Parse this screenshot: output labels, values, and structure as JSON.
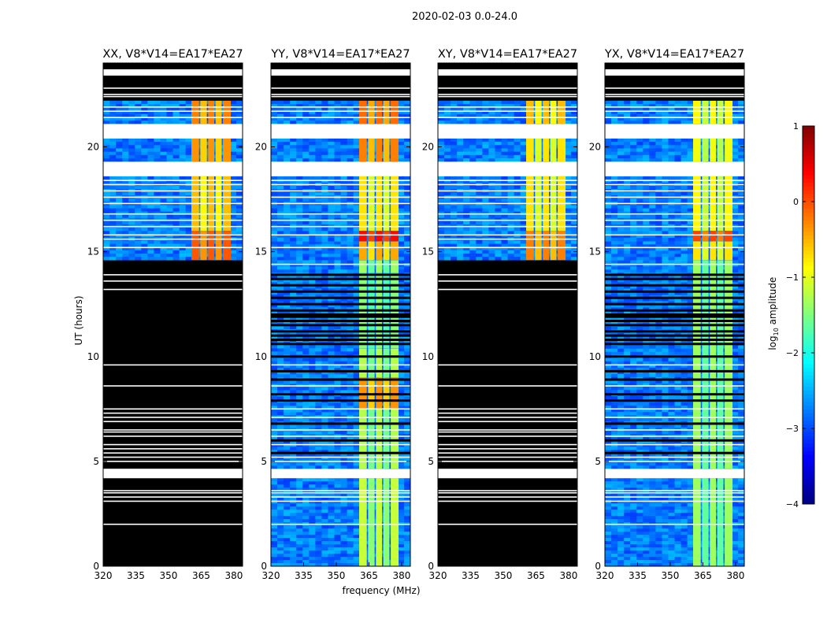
{
  "figure": {
    "title": "2020-02-03 0.0-24.0",
    "xlabel": "frequency (MHz)",
    "ylabel": "UT (hours)"
  },
  "colorbar": {
    "label_prefix": "log",
    "label_sub": "10",
    "label_suffix": " amplitude",
    "range": [
      -4,
      1
    ],
    "ticks": [
      "-4",
      "-3",
      "-2",
      "-1",
      "0",
      "1"
    ],
    "colormap": "jet"
  },
  "chart_data": [
    {
      "type": "heatmap",
      "title": "XX, V8*V14=EA17*EA27",
      "xlim": [
        320,
        384
      ],
      "ylim": [
        0,
        24
      ],
      "xticks": [
        320,
        335,
        350,
        365,
        380
      ],
      "yticks": [
        0,
        5,
        10,
        15,
        20
      ],
      "background_level": -2.8,
      "bands_mhz": [
        [
          360.5,
          364
        ],
        [
          364.6,
          367.6
        ],
        [
          368.2,
          371
        ],
        [
          371.6,
          374.4
        ],
        [
          375,
          378.6
        ]
      ],
      "segments": [
        {
          "t0": 0,
          "t1": 4.2,
          "state": "nodata"
        },
        {
          "t0": 4.2,
          "t1": 4.65,
          "state": "flagged"
        },
        {
          "t0": 4.65,
          "t1": 14.6,
          "state": "nodata"
        },
        {
          "t0": 14.6,
          "t1": 16.0,
          "state": "data",
          "band": -0.1
        },
        {
          "t0": 16.0,
          "t1": 18.6,
          "state": "data",
          "band": -0.6
        },
        {
          "t0": 18.6,
          "t1": 19.3,
          "state": "flagged"
        },
        {
          "t0": 19.3,
          "t1": 20.4,
          "state": "data",
          "band": -0.4
        },
        {
          "t0": 20.4,
          "t1": 21.1,
          "state": "flagged"
        },
        {
          "t0": 21.1,
          "t1": 22.2,
          "state": "data",
          "band": -0.3
        },
        {
          "t0": 22.2,
          "t1": 23.4,
          "state": "nodata"
        },
        {
          "t0": 23.4,
          "t1": 23.7,
          "state": "flagged"
        },
        {
          "t0": 23.7,
          "t1": 24,
          "state": "nodata"
        }
      ],
      "flag_lines": [
        2.0,
        3.1,
        3.3,
        3.5,
        3.6,
        5.0,
        5.2,
        5.4,
        5.6,
        5.8,
        6.2,
        6.4,
        6.5,
        6.9,
        7.1,
        7.3,
        7.5,
        8.6,
        9.6,
        13.2,
        13.6,
        13.9,
        15.2,
        15.6,
        15.8,
        16.2,
        16.5,
        16.8,
        17.3,
        17.6,
        17.9,
        18.2,
        18.4,
        21.4,
        21.7,
        21.9,
        22.4,
        22.5,
        22.8
      ],
      "nodata_lines": []
    },
    {
      "type": "heatmap",
      "title": "YY, V8*V14=EA17*EA27",
      "xlim": [
        320,
        384
      ],
      "ylim": [
        0,
        24
      ],
      "xticks": [
        320,
        335,
        350,
        365,
        380
      ],
      "yticks": [
        0,
        5,
        10,
        15,
        20
      ],
      "background_level": -2.8,
      "bands_mhz": [
        [
          360.5,
          364
        ],
        [
          364.6,
          367.6
        ],
        [
          368.2,
          371
        ],
        [
          371.6,
          374.4
        ],
        [
          375,
          378.6
        ]
      ],
      "segments": [
        {
          "t0": 0,
          "t1": 4.2,
          "state": "data",
          "band": -1.2
        },
        {
          "t0": 4.2,
          "t1": 4.65,
          "state": "flagged"
        },
        {
          "t0": 4.65,
          "t1": 7.5,
          "state": "data",
          "band": -1.3
        },
        {
          "t0": 7.5,
          "t1": 9.0,
          "state": "data",
          "band": -0.4
        },
        {
          "t0": 9.0,
          "t1": 10.4,
          "state": "data",
          "band": -1.3
        },
        {
          "t0": 10.4,
          "t1": 14.0,
          "state": "data",
          "band": -1.5
        },
        {
          "t0": 14.0,
          "t1": 14.6,
          "state": "data",
          "band": -1.4
        },
        {
          "t0": 14.6,
          "t1": 15.5,
          "state": "data",
          "band": -0.5
        },
        {
          "t0": 15.5,
          "t1": 16.0,
          "state": "data",
          "band": 0.3
        },
        {
          "t0": 16.0,
          "t1": 18.6,
          "state": "data",
          "band": -0.8
        },
        {
          "t0": 18.6,
          "t1": 19.3,
          "state": "flagged"
        },
        {
          "t0": 19.3,
          "t1": 20.4,
          "state": "data",
          "band": -0.3
        },
        {
          "t0": 20.4,
          "t1": 21.1,
          "state": "flagged"
        },
        {
          "t0": 21.1,
          "t1": 22.2,
          "state": "data",
          "band": -0.2
        },
        {
          "t0": 22.2,
          "t1": 23.4,
          "state": "nodata"
        },
        {
          "t0": 23.4,
          "t1": 23.7,
          "state": "flagged"
        },
        {
          "t0": 23.7,
          "t1": 24,
          "state": "nodata"
        }
      ],
      "flag_lines": [
        2.0,
        3.1,
        3.3,
        3.5,
        3.6,
        5.0,
        5.2,
        5.8,
        6.2,
        6.5,
        7.1,
        7.5,
        8.6,
        9.6,
        14.4,
        15.2,
        15.8,
        16.2,
        16.5,
        16.8,
        17.3,
        17.6,
        17.9,
        18.2,
        18.4,
        21.4,
        21.7,
        21.9,
        22.4,
        22.5,
        22.8
      ],
      "nodata_lines": [
        5.4,
        6.0,
        6.8,
        7.9,
        8.2,
        8.9,
        9.3,
        10.0,
        10.6,
        10.8,
        11.0,
        11.2,
        11.5,
        11.7,
        11.9,
        12.0,
        12.2,
        12.5,
        12.8,
        13.1,
        13.4,
        13.7,
        13.9
      ]
    },
    {
      "type": "heatmap",
      "title": "XY, V8*V14=EA17*EA27",
      "xlim": [
        320,
        384
      ],
      "ylim": [
        0,
        24
      ],
      "xticks": [
        320,
        335,
        350,
        365,
        380
      ],
      "yticks": [
        0,
        5,
        10,
        15,
        20
      ],
      "background_level": -2.8,
      "bands_mhz": [
        [
          360.5,
          364
        ],
        [
          364.6,
          367.6
        ],
        [
          368.2,
          371
        ],
        [
          371.6,
          374.4
        ],
        [
          375,
          378.6
        ]
      ],
      "segments": [
        {
          "t0": 0,
          "t1": 4.2,
          "state": "nodata"
        },
        {
          "t0": 4.2,
          "t1": 4.65,
          "state": "flagged"
        },
        {
          "t0": 4.65,
          "t1": 14.6,
          "state": "nodata"
        },
        {
          "t0": 14.6,
          "t1": 16.0,
          "state": "data",
          "band": -0.3
        },
        {
          "t0": 16.0,
          "t1": 18.6,
          "state": "data",
          "band": -0.8
        },
        {
          "t0": 18.6,
          "t1": 19.3,
          "state": "flagged"
        },
        {
          "t0": 19.3,
          "t1": 20.4,
          "state": "data",
          "band": -0.8
        },
        {
          "t0": 20.4,
          "t1": 21.1,
          "state": "flagged"
        },
        {
          "t0": 21.1,
          "t1": 22.2,
          "state": "data",
          "band": -0.6
        },
        {
          "t0": 22.2,
          "t1": 23.4,
          "state": "nodata"
        },
        {
          "t0": 23.4,
          "t1": 23.7,
          "state": "flagged"
        },
        {
          "t0": 23.7,
          "t1": 24,
          "state": "nodata"
        }
      ],
      "flag_lines": [
        2.0,
        3.1,
        3.3,
        3.5,
        3.6,
        5.0,
        5.2,
        5.4,
        5.6,
        5.8,
        6.2,
        6.4,
        6.5,
        6.9,
        7.1,
        7.3,
        7.5,
        8.6,
        9.6,
        13.2,
        13.6,
        13.9,
        15.2,
        15.6,
        15.8,
        16.2,
        16.5,
        16.8,
        17.3,
        17.6,
        17.9,
        18.2,
        18.4,
        21.4,
        21.7,
        21.9,
        22.4,
        22.5,
        22.8
      ],
      "nodata_lines": []
    },
    {
      "type": "heatmap",
      "title": "YX, V8*V14=EA17*EA27",
      "xlim": [
        320,
        384
      ],
      "ylim": [
        0,
        24
      ],
      "xticks": [
        320,
        335,
        350,
        365,
        380
      ],
      "yticks": [
        0,
        5,
        10,
        15,
        20
      ],
      "background_level": -2.8,
      "bands_mhz": [
        [
          360.5,
          364
        ],
        [
          364.6,
          367.6
        ],
        [
          368.2,
          371
        ],
        [
          371.6,
          374.4
        ],
        [
          375,
          378.6
        ]
      ],
      "segments": [
        {
          "t0": 0,
          "t1": 4.2,
          "state": "data",
          "band": -1.4
        },
        {
          "t0": 4.2,
          "t1": 4.65,
          "state": "flagged"
        },
        {
          "t0": 4.65,
          "t1": 14.6,
          "state": "data",
          "band": -1.4
        },
        {
          "t0": 14.6,
          "t1": 15.5,
          "state": "data",
          "band": -0.8
        },
        {
          "t0": 15.5,
          "t1": 16.0,
          "state": "data",
          "band": 0.0
        },
        {
          "t0": 16.0,
          "t1": 18.6,
          "state": "data",
          "band": -0.9
        },
        {
          "t0": 18.6,
          "t1": 19.3,
          "state": "flagged"
        },
        {
          "t0": 19.3,
          "t1": 20.4,
          "state": "data",
          "band": -1.0
        },
        {
          "t0": 20.4,
          "t1": 21.1,
          "state": "flagged"
        },
        {
          "t0": 21.1,
          "t1": 22.2,
          "state": "data",
          "band": -0.9
        },
        {
          "t0": 22.2,
          "t1": 23.4,
          "state": "nodata"
        },
        {
          "t0": 23.4,
          "t1": 23.7,
          "state": "flagged"
        },
        {
          "t0": 23.7,
          "t1": 24,
          "state": "nodata"
        }
      ],
      "flag_lines": [
        2.0,
        3.1,
        3.3,
        3.5,
        3.6,
        5.0,
        5.2,
        5.8,
        6.2,
        6.5,
        7.1,
        7.5,
        8.6,
        9.6,
        14.4,
        15.2,
        15.8,
        16.2,
        16.5,
        16.8,
        17.3,
        17.6,
        17.9,
        18.2,
        18.4,
        21.4,
        21.7,
        21.9,
        22.4,
        22.5,
        22.8
      ],
      "nodata_lines": [
        5.4,
        6.0,
        6.8,
        7.9,
        8.2,
        8.9,
        9.3,
        10.0,
        10.6,
        10.8,
        11.0,
        11.2,
        11.5,
        11.7,
        11.9,
        12.0,
        12.2,
        12.5,
        12.8,
        13.1,
        13.4,
        13.7,
        13.9
      ]
    }
  ]
}
